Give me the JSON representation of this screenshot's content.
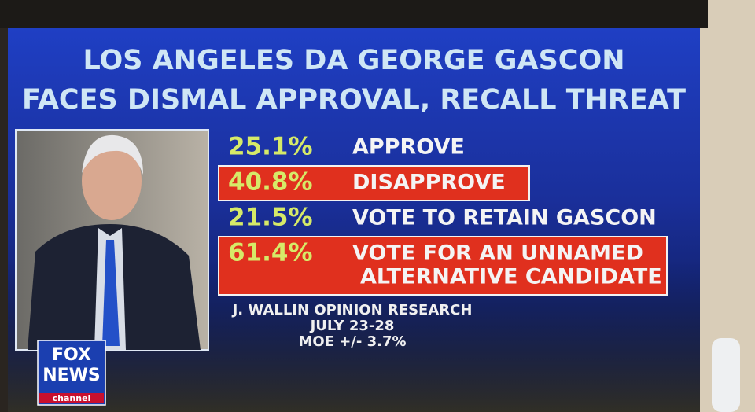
{
  "title": [
    "LOS ANGELES DA GEORGE GASCON",
    "FACES DISMAL APPROVAL, RECALL THREAT"
  ],
  "items": [
    {
      "percent": "25.1%",
      "label": [
        "APPROVE"
      ],
      "highlight": false
    },
    {
      "percent": "40.8%",
      "label": [
        "DISAPPROVE"
      ],
      "highlight": true
    },
    {
      "percent": "21.5%",
      "label": [
        "VOTE TO RETAIN GASCON"
      ],
      "highlight": false
    },
    {
      "percent": "61.4%",
      "label": [
        "VOTE FOR AN UNNAMED",
        "ALTERNATIVE CANDIDATE"
      ],
      "highlight": true
    }
  ],
  "source": [
    "J. WALLIN OPINION RESEARCH",
    "JULY 23-28",
    "MOE +/- 3.7%"
  ],
  "logo": [
    "FOX",
    "NEWS",
    "channel"
  ]
}
